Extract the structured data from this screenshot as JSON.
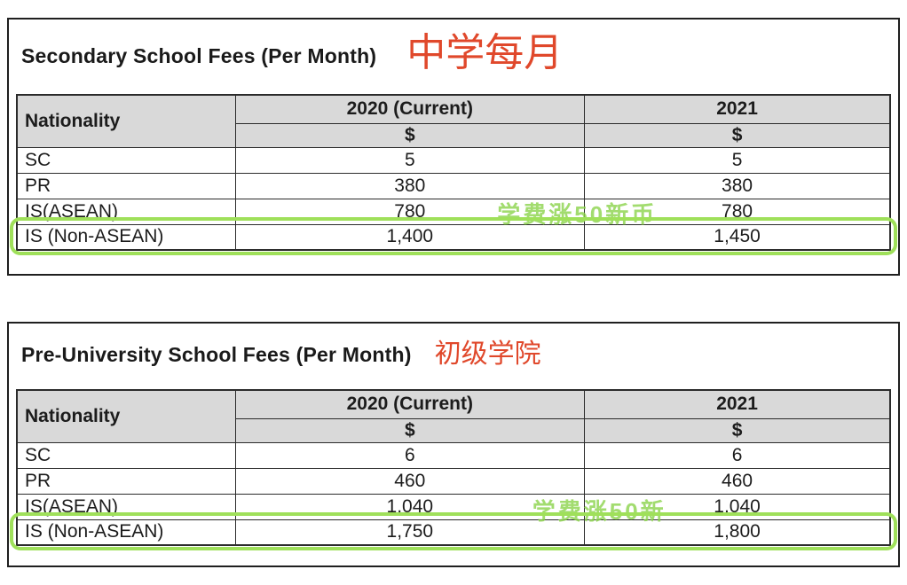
{
  "colors": {
    "annotation_red": "#e0482b",
    "highlight_green": "#9fe05a",
    "watermark_green": "#8bd34b",
    "header_gray": "#d9d9d9"
  },
  "tables": [
    {
      "title": "Secondary School Fees (Per Month)",
      "annotation": "中学每月",
      "watermark": "学费涨50新币",
      "columns": [
        "Nationality",
        "2020 (Current)",
        "2021"
      ],
      "currency": [
        "$",
        "$"
      ],
      "rows": [
        [
          "SC",
          "5",
          "5"
        ],
        [
          "PR",
          "380",
          "380"
        ],
        [
          "IS(ASEAN)",
          "780",
          "780"
        ],
        [
          "IS (Non-ASEAN)",
          "1,400",
          "1,450"
        ]
      ],
      "highlighted_row": "IS (Non-ASEAN)"
    },
    {
      "title": "Pre-University School Fees (Per Month)",
      "annotation": "初级学院",
      "watermark": "学费涨50新",
      "columns": [
        "Nationality",
        "2020 (Current)",
        "2021"
      ],
      "currency": [
        "$",
        "$"
      ],
      "rows": [
        [
          "SC",
          "6",
          "6"
        ],
        [
          "PR",
          "460",
          "460"
        ],
        [
          "IS(ASEAN)",
          "1,040",
          "1,040"
        ],
        [
          "IS (Non-ASEAN)",
          "1,750",
          "1,800"
        ]
      ],
      "highlighted_row": "IS (Non-ASEAN)"
    }
  ]
}
